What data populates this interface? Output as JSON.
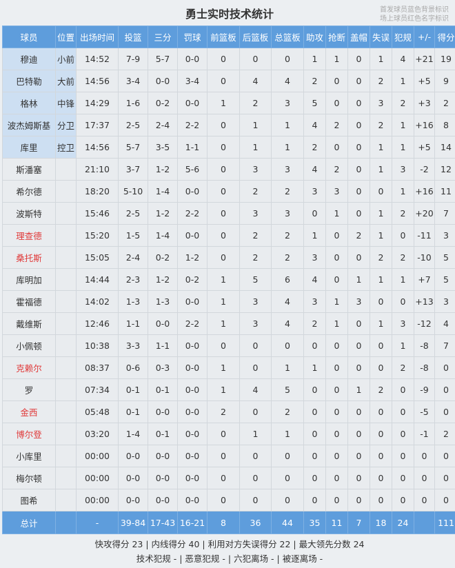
{
  "title": "勇士实时技术统计",
  "legend_note": [
    "首发球员蓝色背景标识",
    "场上球员红色名字标识"
  ],
  "colors": {
    "header": "#5e9ddc",
    "starter_bg": "#cddff2",
    "on_court_name": "#e03a3a"
  },
  "columns": [
    "球员",
    "位置",
    "出场时间",
    "投篮",
    "三分",
    "罚球",
    "前篮板",
    "后篮板",
    "总篮板",
    "助攻",
    "抢断",
    "盖帽",
    "失误",
    "犯规",
    "+/-",
    "得分"
  ],
  "players": [
    {
      "cells": [
        "穆迪",
        "小前",
        "14:52",
        "7-9",
        "5-7",
        "0-0",
        "0",
        "0",
        "0",
        "1",
        "1",
        "0",
        "1",
        "4",
        "+21",
        "19"
      ],
      "starter": true,
      "on_court": false
    },
    {
      "cells": [
        "巴特勒",
        "大前",
        "14:56",
        "3-4",
        "0-0",
        "3-4",
        "0",
        "4",
        "4",
        "2",
        "0",
        "0",
        "2",
        "1",
        "+5",
        "9"
      ],
      "starter": true,
      "on_court": false
    },
    {
      "cells": [
        "格林",
        "中锋",
        "14:29",
        "1-6",
        "0-2",
        "0-0",
        "1",
        "2",
        "3",
        "5",
        "0",
        "0",
        "3",
        "2",
        "+3",
        "2"
      ],
      "starter": true,
      "on_court": false
    },
    {
      "cells": [
        "波杰姆斯基",
        "分卫",
        "17:37",
        "2-5",
        "2-4",
        "2-2",
        "0",
        "1",
        "1",
        "4",
        "2",
        "0",
        "2",
        "1",
        "+16",
        "8"
      ],
      "starter": true,
      "on_court": false
    },
    {
      "cells": [
        "库里",
        "控卫",
        "14:56",
        "5-7",
        "3-5",
        "1-1",
        "0",
        "1",
        "1",
        "2",
        "0",
        "0",
        "1",
        "1",
        "+5",
        "14"
      ],
      "starter": true,
      "on_court": false
    },
    {
      "cells": [
        "斯潘塞",
        "",
        "21:10",
        "3-7",
        "1-2",
        "5-6",
        "0",
        "3",
        "3",
        "4",
        "2",
        "0",
        "1",
        "3",
        "-2",
        "12"
      ],
      "starter": false,
      "on_court": false
    },
    {
      "cells": [
        "希尔德",
        "",
        "18:20",
        "5-10",
        "1-4",
        "0-0",
        "0",
        "2",
        "2",
        "3",
        "3",
        "0",
        "0",
        "1",
        "+16",
        "11"
      ],
      "starter": false,
      "on_court": false
    },
    {
      "cells": [
        "波斯特",
        "",
        "15:46",
        "2-5",
        "1-2",
        "2-2",
        "0",
        "3",
        "3",
        "0",
        "1",
        "0",
        "1",
        "2",
        "+20",
        "7"
      ],
      "starter": false,
      "on_court": false
    },
    {
      "cells": [
        "理查德",
        "",
        "15:20",
        "1-5",
        "1-4",
        "0-0",
        "0",
        "2",
        "2",
        "1",
        "0",
        "2",
        "1",
        "0",
        "-11",
        "3"
      ],
      "starter": false,
      "on_court": true
    },
    {
      "cells": [
        "桑托斯",
        "",
        "15:05",
        "2-4",
        "0-2",
        "1-2",
        "0",
        "2",
        "2",
        "3",
        "0",
        "0",
        "2",
        "2",
        "-10",
        "5"
      ],
      "starter": false,
      "on_court": true
    },
    {
      "cells": [
        "库明加",
        "",
        "14:44",
        "2-3",
        "1-2",
        "0-2",
        "1",
        "5",
        "6",
        "4",
        "0",
        "1",
        "1",
        "1",
        "+7",
        "5"
      ],
      "starter": false,
      "on_court": false
    },
    {
      "cells": [
        "霍福德",
        "",
        "14:02",
        "1-3",
        "1-3",
        "0-0",
        "1",
        "3",
        "4",
        "3",
        "1",
        "3",
        "0",
        "0",
        "+13",
        "3"
      ],
      "starter": false,
      "on_court": false
    },
    {
      "cells": [
        "戴维斯",
        "",
        "12:46",
        "1-1",
        "0-0",
        "2-2",
        "1",
        "3",
        "4",
        "2",
        "1",
        "0",
        "1",
        "3",
        "-12",
        "4"
      ],
      "starter": false,
      "on_court": false
    },
    {
      "cells": [
        "小佩顿",
        "",
        "10:38",
        "3-3",
        "1-1",
        "0-0",
        "0",
        "0",
        "0",
        "0",
        "0",
        "0",
        "0",
        "1",
        "-8",
        "7"
      ],
      "starter": false,
      "on_court": false
    },
    {
      "cells": [
        "克赖尔",
        "",
        "08:37",
        "0-6",
        "0-3",
        "0-0",
        "1",
        "0",
        "1",
        "1",
        "0",
        "0",
        "0",
        "2",
        "-8",
        "0"
      ],
      "starter": false,
      "on_court": true
    },
    {
      "cells": [
        "罗",
        "",
        "07:34",
        "0-1",
        "0-1",
        "0-0",
        "1",
        "4",
        "5",
        "0",
        "0",
        "1",
        "2",
        "0",
        "-9",
        "0"
      ],
      "starter": false,
      "on_court": false
    },
    {
      "cells": [
        "金西",
        "",
        "05:48",
        "0-1",
        "0-0",
        "0-0",
        "2",
        "0",
        "2",
        "0",
        "0",
        "0",
        "0",
        "0",
        "-5",
        "0"
      ],
      "starter": false,
      "on_court": true
    },
    {
      "cells": [
        "博尔登",
        "",
        "03:20",
        "1-4",
        "0-1",
        "0-0",
        "0",
        "1",
        "1",
        "0",
        "0",
        "0",
        "0",
        "0",
        "-1",
        "2"
      ],
      "starter": false,
      "on_court": true
    },
    {
      "cells": [
        "小库里",
        "",
        "00:00",
        "0-0",
        "0-0",
        "0-0",
        "0",
        "0",
        "0",
        "0",
        "0",
        "0",
        "0",
        "0",
        "0",
        "0"
      ],
      "starter": false,
      "on_court": false
    },
    {
      "cells": [
        "梅尔顿",
        "",
        "00:00",
        "0-0",
        "0-0",
        "0-0",
        "0",
        "0",
        "0",
        "0",
        "0",
        "0",
        "0",
        "0",
        "0",
        "0"
      ],
      "starter": false,
      "on_court": false
    },
    {
      "cells": [
        "图希",
        "",
        "00:00",
        "0-0",
        "0-0",
        "0-0",
        "0",
        "0",
        "0",
        "0",
        "0",
        "0",
        "0",
        "0",
        "0",
        "0"
      ],
      "starter": false,
      "on_court": false
    }
  ],
  "total": [
    "总计",
    "",
    "-",
    "39-84",
    "17-43",
    "16-21",
    "8",
    "36",
    "44",
    "35",
    "11",
    "7",
    "18",
    "24",
    "",
    "111"
  ],
  "footer": [
    "快攻得分 23 | 内线得分 40 | 利用对方失误得分 22 | 最大领先分数 24",
    "技术犯规 - | 恶意犯规 - | 六犯离场 - | 被逐离场 -"
  ]
}
